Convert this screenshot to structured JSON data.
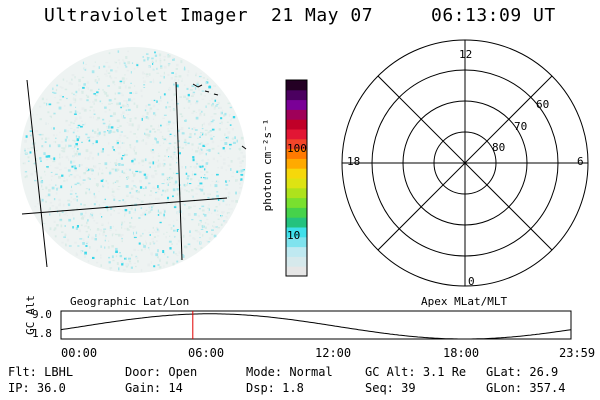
{
  "header": {
    "instrument": "Ultraviolet Imager",
    "date": "21 May 07",
    "time": "06:13:09 UT"
  },
  "colorbar": {
    "unit_label": "photon cm⁻²s⁻¹",
    "unit_base": "photon cm",
    "unit_exp1": "-2",
    "unit_mid": "s",
    "unit_exp2": "-1",
    "tick_100": "100",
    "tick_10": "10",
    "colors": [
      "#e6e6e6",
      "#d6e9ec",
      "#bfe9f1",
      "#7fe3ee",
      "#3fe0ea",
      "#24c27e",
      "#46d24b",
      "#79e02f",
      "#aee21c",
      "#dde313",
      "#f6d80b",
      "#ffaa00",
      "#ff7a00",
      "#f2452a",
      "#e21634",
      "#c00028",
      "#9f0059",
      "#7a0097",
      "#4b0060",
      "#240024"
    ]
  },
  "polar_plot": {
    "mlt_12": "12",
    "mlt_18": "18",
    "mlt_6": "6",
    "mlt_0": "0",
    "lat_60": "60",
    "lat_70": "70",
    "lat_80": "80"
  },
  "timeline": {
    "ylabel": "GC Alt",
    "ytick_top": "9.0",
    "ytick_bottom": "1.8",
    "left_caption": "Geographic Lat/Lon",
    "right_caption": "Apex MLat/MLT",
    "x_ticks": [
      "00:00",
      "06:00",
      "12:00",
      "18:00",
      "23:59"
    ],
    "current_time_hours": 6.2,
    "marker_color": "#e00000"
  },
  "status": {
    "flt_label": "Flt:",
    "flt_value": "LBHL",
    "ip_label": "IP:",
    "ip_value": "36.0",
    "door_label": "Door:",
    "door_value": "Open",
    "gain_label": "Gain:",
    "gain_value": "14",
    "mode_label": "Mode:",
    "mode_value": "Normal",
    "dsp_label": "Dsp:",
    "dsp_value": "1.8",
    "gcalt_label": "GC Alt:",
    "gcalt_value": "3.1 Re",
    "seq_label": "Seq:",
    "seq_value": "39",
    "glat_label": "GLat:",
    "glat_value": "26.9",
    "glon_label": "GLon:",
    "glon_value": "357.4"
  }
}
